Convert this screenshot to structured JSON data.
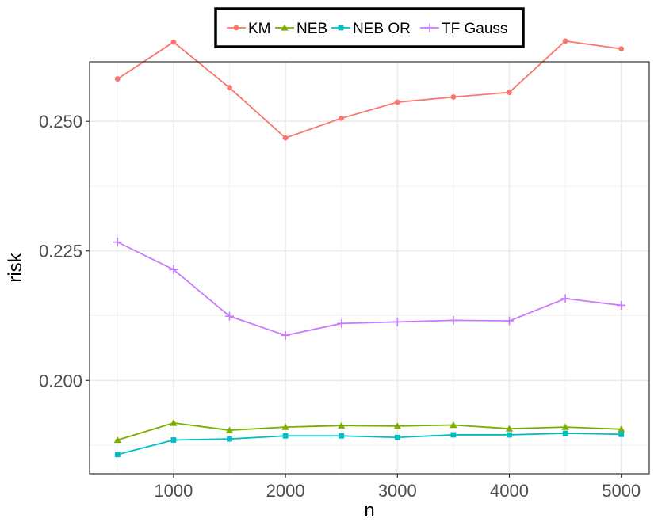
{
  "chart_data": {
    "type": "line",
    "xlabel": "n",
    "ylabel": "risk",
    "xlim": [
      250,
      5250
    ],
    "ylim": [
      0.182,
      0.2615
    ],
    "x_ticks": [
      1000,
      2000,
      3000,
      4000,
      5000
    ],
    "x_tick_labels": [
      "1000",
      "2000",
      "3000",
      "4000",
      "5000"
    ],
    "y_ticks": [
      0.2,
      0.225,
      0.25
    ],
    "y_tick_labels": [
      "0.200",
      "0.225",
      "0.250"
    ],
    "grid": true,
    "legend_position": "top",
    "x": [
      500,
      1000,
      1500,
      2000,
      2500,
      3000,
      3500,
      4000,
      4500,
      5000
    ],
    "series": [
      {
        "name": "KM",
        "color": "#F8766D",
        "marker": "circle",
        "values": [
          0.2582,
          0.2653,
          0.2565,
          0.2468,
          0.2506,
          0.2537,
          0.2547,
          0.2556,
          0.2655,
          0.264
        ]
      },
      {
        "name": "NEB",
        "color": "#7CAE00",
        "marker": "triangle",
        "values": [
          0.1885,
          0.1918,
          0.1904,
          0.191,
          0.1913,
          0.1912,
          0.1914,
          0.1907,
          0.191,
          0.1906
        ]
      },
      {
        "name": "NEB OR",
        "color": "#00BFC4",
        "marker": "square",
        "values": [
          0.1857,
          0.1885,
          0.1887,
          0.1893,
          0.1893,
          0.189,
          0.1895,
          0.1895,
          0.1898,
          0.1896
        ]
      },
      {
        "name": "TF Gauss",
        "color": "#C77CFF",
        "marker": "plus",
        "values": [
          0.2267,
          0.2214,
          0.2124,
          0.2087,
          0.211,
          0.2113,
          0.2116,
          0.2115,
          0.2158,
          0.2145
        ]
      }
    ]
  }
}
